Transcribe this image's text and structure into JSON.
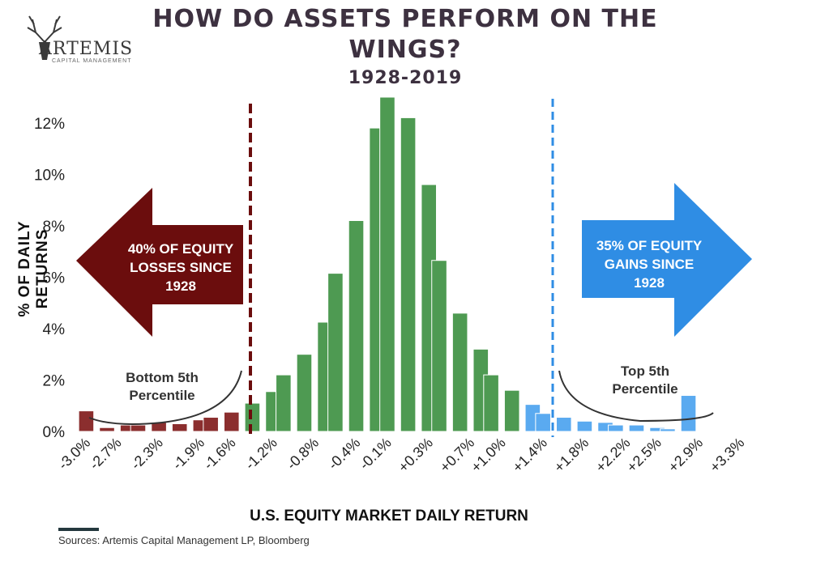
{
  "title_line1": "HOW DO ASSETS PERFORM ON THE",
  "title_line2": "WINGS?",
  "subtitle": "1928-2019",
  "logo": {
    "name": "ARTEMIS",
    "tagline": "CAPITAL MANAGEMENT",
    "icon": "stag-antlers-icon"
  },
  "source": "Sources: Artemis Capital Management LP, Bloomberg",
  "left_arrow": {
    "line1": "40% OF EQUITY",
    "line2": "LOSSES SINCE",
    "line3": "1928",
    "color": "#6b0d0d"
  },
  "right_arrow": {
    "line1": "35% OF EQUITY",
    "line2": "GAINS SINCE",
    "line3": "1928",
    "color": "#2f8de4"
  },
  "left_note": {
    "line1": "Bottom 5th",
    "line2": "Percentile"
  },
  "right_note": {
    "line1": "Top 5th",
    "line2": "Percentile"
  },
  "colors": {
    "loss": "#8b2e2e",
    "mid": "#4e9a52",
    "gain": "#5aaaf0",
    "left_line": "#6b0d0d",
    "right_line": "#2f8de4"
  },
  "chart_data": {
    "type": "bar",
    "xlabel": "U.S. EQUITY MARKET DAILY RETURN",
    "ylabel": "% OF DAILY RETURNS",
    "ylim": [
      0,
      13
    ],
    "yticks": [
      "0%",
      "2%",
      "4%",
      "6%",
      "8%",
      "10%",
      "12%"
    ],
    "ytick_values": [
      0,
      2,
      4,
      6,
      8,
      10,
      12
    ],
    "categories": [
      "-3.0%",
      "-2.9%",
      "-2.8%",
      "-2.7%",
      "-2.6%",
      "-2.5%",
      "-2.4%",
      "-2.3%",
      "-2.2%",
      "-2.1%",
      "-2.0%",
      "-1.9%",
      "-1.8%",
      "-1.7%",
      "-1.6%",
      "-1.5%",
      "-1.4%",
      "-1.3%",
      "-1.2%",
      "-1.1%",
      "-1.0%",
      "-0.9%",
      "-0.8%",
      "-0.7%",
      "-0.6%",
      "-0.5%",
      "-0.4%",
      "-0.3%",
      "-0.2%",
      "-0.1%",
      "+0.0%",
      "+0.1%",
      "+0.2%",
      "+0.3%",
      "+0.4%",
      "+0.5%",
      "+0.6%",
      "+0.7%",
      "+0.8%",
      "+0.9%",
      "+1.0%",
      "+1.1%",
      "+1.2%",
      "+1.3%",
      "+1.4%",
      "+1.5%",
      "+1.6%",
      "+1.7%",
      "+1.8%",
      "+1.9%",
      "+2.0%",
      "+2.1%",
      "+2.2%",
      "+2.3%",
      "+2.4%",
      "+2.5%",
      "+2.6%",
      "+2.7%",
      "+2.8%",
      "+2.9%",
      "+3.0%",
      "+3.1%",
      "+3.2%",
      "+3.3%"
    ],
    "visible_tick_labels": [
      "-3.0%",
      "-2.7%",
      "-2.3%",
      "-1.9%",
      "-1.6%",
      "-1.2%",
      "-0.8%",
      "-0.4%",
      "-0.1%",
      "+0.3%",
      "+0.7%",
      "+1.0%",
      "+1.4%",
      "+1.8%",
      "+2.2%",
      "+2.5%",
      "+2.9%",
      "+3.3%"
    ],
    "bars": [
      {
        "x": "-3.0%",
        "value": 0.8,
        "group": "loss"
      },
      {
        "x": "-2.8%",
        "value": 0.15,
        "group": "loss"
      },
      {
        "x": "-2.6%",
        "value": 0.25,
        "group": "loss"
      },
      {
        "x": "-2.5%",
        "value": 0.25,
        "group": "loss"
      },
      {
        "x": "-2.3%",
        "value": 0.35,
        "group": "loss"
      },
      {
        "x": "-2.1%",
        "value": 0.3,
        "group": "loss"
      },
      {
        "x": "-1.9%",
        "value": 0.45,
        "group": "loss"
      },
      {
        "x": "-1.8%",
        "value": 0.55,
        "group": "loss"
      },
      {
        "x": "-1.6%",
        "value": 0.75,
        "group": "loss"
      },
      {
        "x": "-1.4%",
        "value": 1.1,
        "group": "mid"
      },
      {
        "x": "-1.2%",
        "value": 1.55,
        "group": "mid"
      },
      {
        "x": "-1.1%",
        "value": 2.2,
        "group": "mid"
      },
      {
        "x": "-0.9%",
        "value": 3.0,
        "group": "mid"
      },
      {
        "x": "-0.7%",
        "value": 4.25,
        "group": "mid"
      },
      {
        "x": "-0.6%",
        "value": 6.15,
        "group": "mid"
      },
      {
        "x": "-0.4%",
        "value": 8.2,
        "group": "mid"
      },
      {
        "x": "-0.2%",
        "value": 11.8,
        "group": "mid"
      },
      {
        "x": "-0.1%",
        "value": 13.0,
        "group": "mid"
      },
      {
        "x": "+0.1%",
        "value": 12.2,
        "group": "mid"
      },
      {
        "x": "+0.3%",
        "value": 9.6,
        "group": "mid"
      },
      {
        "x": "+0.4%",
        "value": 6.65,
        "group": "mid"
      },
      {
        "x": "+0.6%",
        "value": 4.6,
        "group": "mid"
      },
      {
        "x": "+0.8%",
        "value": 3.2,
        "group": "mid"
      },
      {
        "x": "+0.9%",
        "value": 2.2,
        "group": "mid"
      },
      {
        "x": "+1.1%",
        "value": 1.6,
        "group": "mid"
      },
      {
        "x": "+1.3%",
        "value": 1.05,
        "group": "gain"
      },
      {
        "x": "+1.4%",
        "value": 0.7,
        "group": "gain"
      },
      {
        "x": "+1.6%",
        "value": 0.55,
        "group": "gain"
      },
      {
        "x": "+1.8%",
        "value": 0.4,
        "group": "gain"
      },
      {
        "x": "+2.0%",
        "value": 0.35,
        "group": "gain"
      },
      {
        "x": "+2.1%",
        "value": 0.25,
        "group": "gain"
      },
      {
        "x": "+2.3%",
        "value": 0.25,
        "group": "gain"
      },
      {
        "x": "+2.5%",
        "value": 0.15,
        "group": "gain"
      },
      {
        "x": "+2.6%",
        "value": 0.1,
        "group": "gain"
      },
      {
        "x": "+2.8%",
        "value": 1.4,
        "group": "gain"
      }
    ],
    "grid": false,
    "legend": "none"
  }
}
